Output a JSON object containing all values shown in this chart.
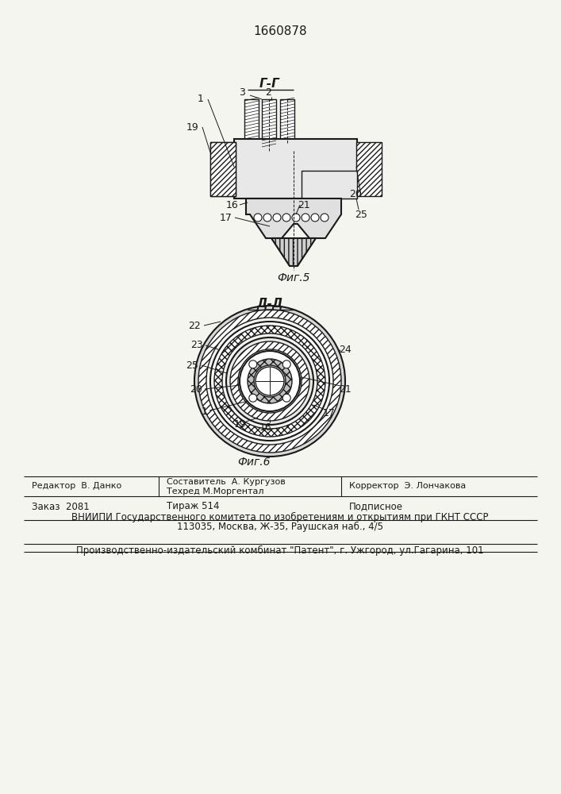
{
  "patent_number": "1660878",
  "fig5_label": "Г-Г",
  "fig5_caption": "Фиг.5",
  "fig6_label": "Д-Д",
  "fig6_caption": "Фиг.6",
  "bg_color": "#f5f5f0",
  "line_color": "#1a1a1a",
  "hatch_color": "#1a1a1a",
  "footer_line1_col1": "Редактор  В. Данко",
  "footer_line2_col1": "Заказ  2081",
  "footer_line1_col2": "Составитель  А. Кургузов",
  "footer_line2_col2_a": "Тираж 514",
  "footer_line2_col2": "Техред М.Моргентал",
  "footer_line3_col2": "ВНИИПИ Государственного комитета по изобретениям и открытиям при ГКНТ СССР",
  "footer_line4_col2": "113035, Москва, Ж-35, Раушская наб., 4/5",
  "footer_line1_col3": "Корректор  Э. Лончакова",
  "footer_line2_col3": "Подписное",
  "footer_bottom": "Производственно-издательский комбинат \"Патент\", г. Ужгород, ул.Гагарина, 101"
}
